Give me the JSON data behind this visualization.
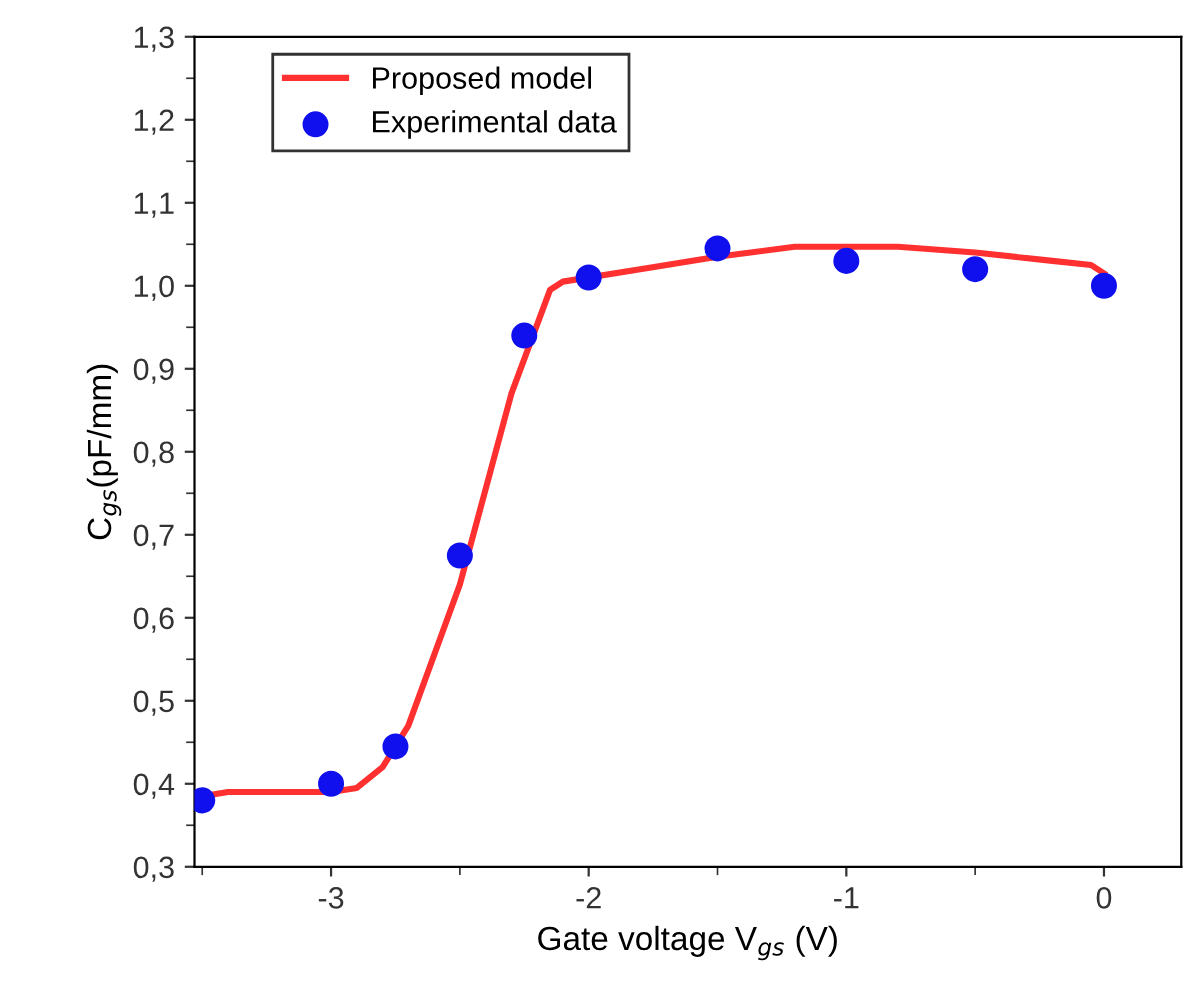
{
  "chart_data": {
    "type": "line",
    "xlabel": "Gate voltage V$_{gs}$ (V)",
    "ylabel": "C$_{gs}$(pF/mm)",
    "xlim": [
      -3.53,
      0.3
    ],
    "xticks": [
      -3,
      -2,
      -1,
      0
    ],
    "ylim": [
      0.3,
      1.3
    ],
    "yticks": [
      {
        "value": 0.3,
        "label": "0,3"
      },
      {
        "value": 0.4,
        "label": "0,4"
      },
      {
        "value": 0.5,
        "label": "0,5"
      },
      {
        "value": 0.6,
        "label": "0,6"
      },
      {
        "value": 0.7,
        "label": "0,7"
      },
      {
        "value": 0.8,
        "label": "0,8"
      },
      {
        "value": 0.9,
        "label": "0,9"
      },
      {
        "value": 1.0,
        "label": "1,0"
      },
      {
        "value": 1.1,
        "label": "1,1"
      },
      {
        "value": 1.2,
        "label": "1,2"
      },
      {
        "value": 1.3,
        "label": "1,3"
      }
    ],
    "grid": false,
    "legend": "top left",
    "series": [
      {
        "name": "Proposed model",
        "color": "#ff3030",
        "marker": "none",
        "line_style": "solid",
        "x": [
          -3.5,
          -3.4,
          -3.0,
          -2.9,
          -2.8,
          -2.7,
          -2.5,
          -2.3,
          -2.15,
          -2.1,
          -1.8,
          -1.5,
          -1.2,
          -0.8,
          -0.5,
          -0.2,
          -0.05,
          0
        ],
        "values": [
          0.385,
          0.39,
          0.39,
          0.395,
          0.42,
          0.47,
          0.64,
          0.87,
          0.995,
          1.005,
          1.02,
          1.035,
          1.047,
          1.047,
          1.04,
          1.03,
          1.025,
          1.015
        ]
      },
      {
        "name": "Experimental data",
        "type": "scatter",
        "color": "#1010ee",
        "marker": "circle",
        "x": [
          -3.5,
          -3,
          -2.75,
          -2.5,
          -2.25,
          -2,
          -1.5,
          -1,
          -0.5,
          0
        ],
        "values": [
          0.38,
          0.4,
          0.445,
          0.675,
          0.94,
          1.01,
          1.045,
          1.03,
          1.02,
          1.0
        ]
      }
    ]
  }
}
